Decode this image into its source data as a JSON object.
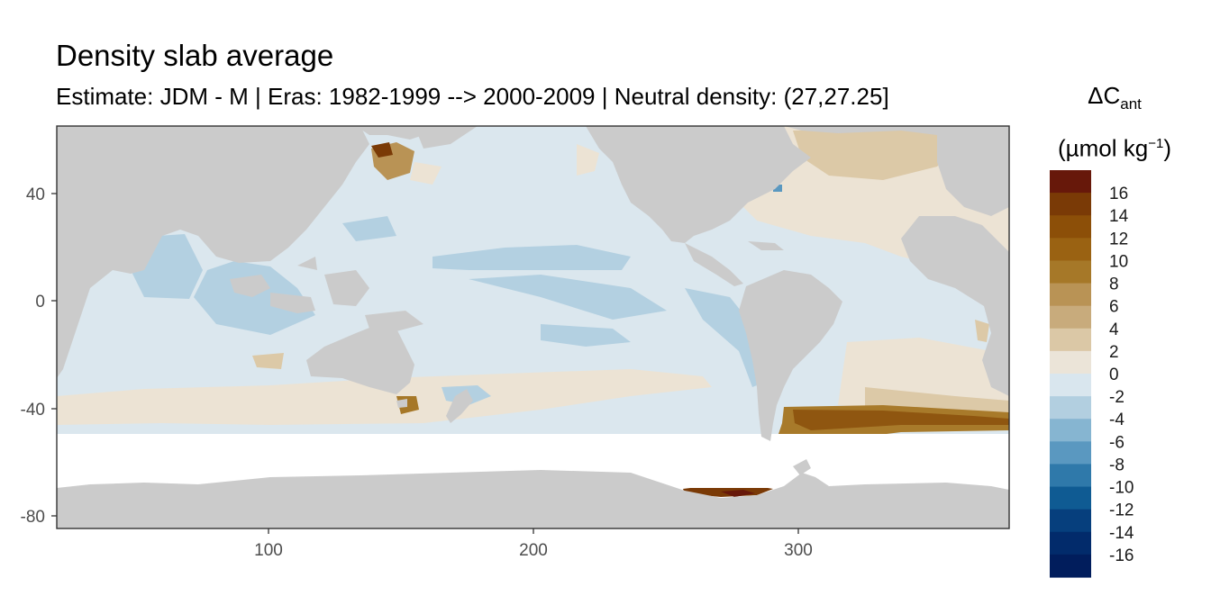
{
  "title": "Density slab average",
  "subtitle": "Estimate: JDM - M | Eras: 1982-1999 --> 2000-2009 | Neutral density: (27,27.25]",
  "legend": {
    "title_symbol": "ΔC",
    "title_subscript": "ant",
    "unit_prefix": "(µmol kg",
    "unit_exponent": "−1",
    "unit_suffix": ")",
    "breaks": [
      "16",
      "14",
      "12",
      "10",
      "8",
      "6",
      "4",
      "2",
      "0",
      "-2",
      "-4",
      "-6",
      "-8",
      "-10",
      "-12",
      "-14",
      "-16"
    ],
    "colors": [
      "#67180a",
      "#7a3a06",
      "#8c4f08",
      "#9a6212",
      "#a67828",
      "#b99355",
      "#c8ab7c",
      "#dbc8a6",
      "#ebe4d8",
      "#d9e6ee",
      "#b2cfe0",
      "#86b5d1",
      "#5a98c0",
      "#2f79aa",
      "#0f5b93",
      "#063f7d",
      "#022b6b",
      "#011d5c"
    ]
  },
  "axes": {
    "x_ticks": [
      "100",
      "200",
      "300"
    ],
    "y_ticks": [
      "40",
      "0",
      "-40",
      "-80"
    ],
    "x_range": [
      20,
      380
    ],
    "y_range": [
      -85,
      65
    ]
  },
  "colors": {
    "land": "#cbcbcb",
    "background": "#ffffff",
    "grid": "#ebebeb",
    "border": "#333333",
    "field_zero_neg": "#dbe7ee",
    "field_blue": "#b3d0e1",
    "field_tan": "#ece3d4",
    "field_tan2": "#dcc9a7",
    "field_brown": "#a87a2a",
    "field_darkbrown": "#6f2a0c"
  }
}
